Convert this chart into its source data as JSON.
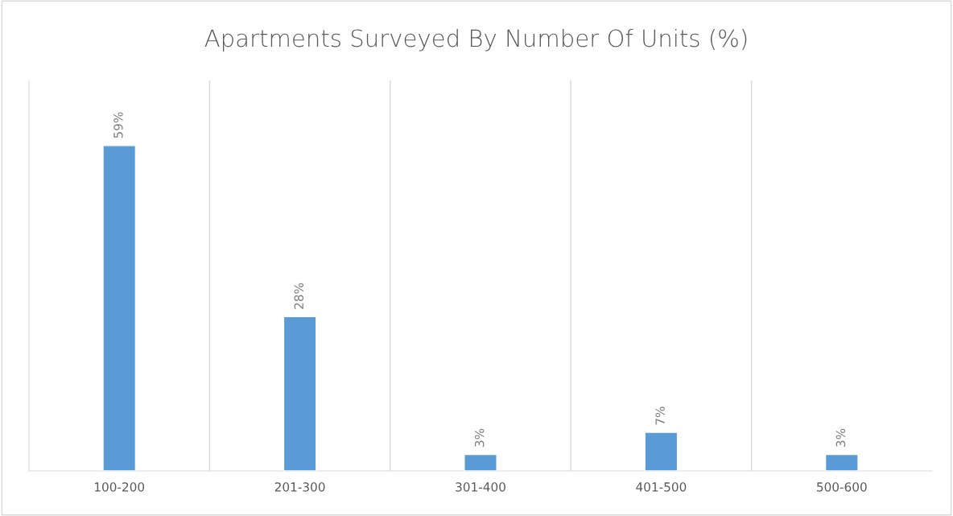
{
  "chart_data": {
    "type": "bar",
    "title": "Apartments Surveyed By Number Of Units (%)",
    "categories": [
      "100-200",
      "201-300",
      "301-400",
      "401-500",
      "500-600"
    ],
    "values": [
      59,
      28,
      3,
      7,
      3
    ],
    "value_labels": [
      "59%",
      "28%",
      "3%",
      "7%",
      "3%"
    ],
    "color": "#5b9bd5",
    "grid": "x"
  }
}
